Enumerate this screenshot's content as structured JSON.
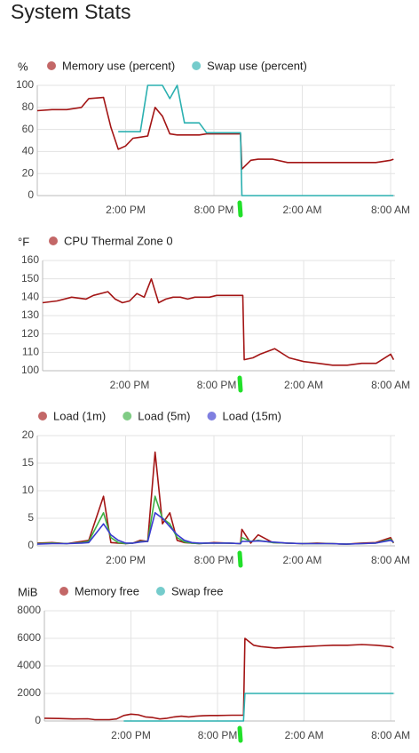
{
  "title": "System Stats",
  "chart_data": [
    {
      "type": "line",
      "y_label": "%",
      "x": [
        8,
        9,
        10,
        11,
        11.5,
        12.5,
        13,
        13.5,
        14,
        14.5,
        15,
        15.5,
        16,
        16.5,
        17,
        17.5,
        18,
        18.5,
        19,
        19.5,
        20,
        21,
        21.8,
        21.9,
        22.5,
        23,
        24,
        25,
        26,
        27,
        28,
        29,
        30,
        31,
        32,
        32.2
      ],
      "series": [
        {
          "name": "Memory use (percent)",
          "color": "#a31515",
          "values": [
            77,
            78,
            78,
            80,
            88,
            89,
            62,
            42,
            45,
            52,
            53,
            54,
            80,
            72,
            56,
            55,
            55,
            55,
            55,
            56,
            56,
            56,
            56,
            24,
            32,
            33,
            33,
            30,
            30,
            30,
            30,
            30,
            30,
            30,
            32,
            33
          ]
        },
        {
          "name": "Swap use (percent)",
          "color": "#2bb0b0",
          "values": [
            null,
            null,
            null,
            null,
            null,
            null,
            null,
            58,
            58,
            58,
            58,
            100,
            100,
            100,
            88,
            100,
            66,
            66,
            66,
            57,
            57,
            57,
            57,
            0,
            0,
            0,
            0,
            0,
            0,
            0,
            0,
            0,
            0,
            0,
            0,
            0
          ]
        }
      ],
      "xlim": [
        8,
        32.3
      ],
      "xticks": [
        {
          "value": 14,
          "label": "2:00 PM"
        },
        {
          "value": 20,
          "label": "8:00 PM"
        },
        {
          "value": 26,
          "label": "2:00 AM"
        },
        {
          "value": 32,
          "label": "8:00 AM"
        }
      ],
      "ylim": [
        0,
        100
      ],
      "yticks": [
        0,
        20,
        40,
        60,
        80,
        100
      ],
      "grid": true
    },
    {
      "type": "line",
      "y_label": "°F",
      "x": [
        8,
        9,
        10,
        11,
        11.5,
        12.5,
        13,
        13.5,
        14,
        14.5,
        15,
        15.5,
        16,
        16.5,
        17,
        17.5,
        18,
        18.5,
        19,
        19.5,
        20,
        21,
        21.8,
        21.9,
        22.5,
        23,
        24,
        25,
        26,
        27,
        28,
        29,
        30,
        31,
        32,
        32.2
      ],
      "series": [
        {
          "name": "CPU Thermal Zone 0",
          "color": "#a31515",
          "values": [
            137,
            138,
            140,
            139,
            141,
            143,
            139,
            137,
            138,
            142,
            140,
            150,
            137,
            139,
            140,
            140,
            139,
            140,
            140,
            140,
            141,
            141,
            141,
            106,
            107,
            109,
            112,
            107,
            105,
            104,
            103,
            103,
            104,
            104,
            109,
            106
          ]
        }
      ],
      "xlim": [
        8,
        32.3
      ],
      "xticks": [
        {
          "value": 14,
          "label": "2:00 PM"
        },
        {
          "value": 20,
          "label": "8:00 PM"
        },
        {
          "value": 26,
          "label": "2:00 AM"
        },
        {
          "value": 32,
          "label": "8:00 AM"
        }
      ],
      "ylim": [
        100,
        160
      ],
      "yticks": [
        100,
        110,
        120,
        130,
        140,
        150,
        160
      ],
      "grid": true
    },
    {
      "type": "line",
      "x": [
        8,
        9,
        10,
        11,
        11.5,
        12.5,
        13,
        13.5,
        14,
        14.5,
        15,
        15.5,
        16,
        16.5,
        17,
        17.5,
        18,
        18.5,
        19,
        19.5,
        20,
        21,
        21.8,
        21.9,
        22.5,
        23,
        24,
        25,
        26,
        27,
        28,
        29,
        30,
        31,
        32,
        32.2
      ],
      "series": [
        {
          "name": "Load (1m)",
          "color": "#a31515",
          "values": [
            0.5,
            0.6,
            0.4,
            0.8,
            1,
            9,
            0.6,
            0.5,
            0.4,
            0.5,
            1,
            0.8,
            17,
            4,
            6,
            1,
            0.6,
            0.5,
            0.4,
            0.5,
            0.6,
            0.5,
            0.4,
            3,
            0.5,
            2,
            0.6,
            0.5,
            0.4,
            0.5,
            0.4,
            0.3,
            0.5,
            0.6,
            1.5,
            0.5
          ]
        },
        {
          "name": "Load (5m)",
          "color": "#3cb043",
          "values": [
            0.4,
            0.5,
            0.4,
            0.6,
            0.8,
            6,
            1.5,
            0.6,
            0.4,
            0.5,
            0.8,
            0.8,
            9,
            5,
            4,
            1.5,
            0.7,
            0.5,
            0.4,
            0.5,
            0.5,
            0.5,
            0.4,
            1.5,
            0.8,
            1,
            0.6,
            0.5,
            0.4,
            0.4,
            0.4,
            0.3,
            0.4,
            0.5,
            1.2,
            0.6
          ]
        },
        {
          "name": "Load (15m)",
          "color": "#3a3ad0",
          "values": [
            0.3,
            0.4,
            0.4,
            0.5,
            0.6,
            4,
            2,
            1,
            0.5,
            0.5,
            0.7,
            0.8,
            6,
            5,
            3.5,
            2,
            1,
            0.6,
            0.5,
            0.5,
            0.5,
            0.5,
            0.4,
            0.8,
            0.8,
            0.9,
            0.7,
            0.5,
            0.4,
            0.4,
            0.4,
            0.3,
            0.4,
            0.5,
            1,
            0.7
          ]
        }
      ],
      "xlim": [
        8,
        32.3
      ],
      "xticks": [
        {
          "value": 14,
          "label": "2:00 PM"
        },
        {
          "value": 20,
          "label": "8:00 PM"
        },
        {
          "value": 26,
          "label": "2:00 AM"
        },
        {
          "value": 32,
          "label": "8:00 AM"
        }
      ],
      "ylim": [
        0,
        20
      ],
      "yticks": [
        0,
        5,
        10,
        15,
        20
      ],
      "grid": true
    },
    {
      "type": "line",
      "y_label": "MiB",
      "x": [
        8,
        9,
        10,
        11,
        11.5,
        12.5,
        13,
        13.5,
        14,
        14.5,
        15,
        15.5,
        16,
        16.5,
        17,
        17.5,
        18,
        18.5,
        19,
        19.5,
        20,
        21,
        21.8,
        21.9,
        22.5,
        23,
        24,
        25,
        26,
        27,
        28,
        29,
        30,
        31,
        32,
        32.2
      ],
      "series": [
        {
          "name": "Memory free",
          "color": "#a31515",
          "values": [
            200,
            180,
            150,
            160,
            100,
            100,
            150,
            400,
            500,
            450,
            300,
            250,
            150,
            200,
            300,
            350,
            300,
            350,
            380,
            400,
            400,
            420,
            420,
            6000,
            5500,
            5400,
            5300,
            5350,
            5400,
            5450,
            5500,
            5500,
            5550,
            5500,
            5400,
            5300
          ]
        },
        {
          "name": "Swap free",
          "color": "#2bb0b0",
          "values": [
            null,
            null,
            null,
            null,
            null,
            null,
            null,
            0,
            0,
            0,
            0,
            0,
            0,
            0,
            0,
            0,
            0,
            0,
            0,
            0,
            0,
            0,
            0,
            2000,
            2000,
            2000,
            2000,
            2000,
            2000,
            2000,
            2000,
            2000,
            2000,
            2000,
            2000,
            2000
          ]
        }
      ],
      "xlim": [
        8,
        32.3
      ],
      "xticks": [
        {
          "value": 14,
          "label": "2:00 PM"
        },
        {
          "value": 20,
          "label": "8:00 PM"
        },
        {
          "value": 26,
          "label": "2:00 AM"
        },
        {
          "value": 32,
          "label": "8:00 AM"
        }
      ],
      "ylim": [
        0,
        8000
      ],
      "yticks": [
        0,
        2000,
        4000,
        6000,
        8000
      ],
      "grid": true
    }
  ]
}
